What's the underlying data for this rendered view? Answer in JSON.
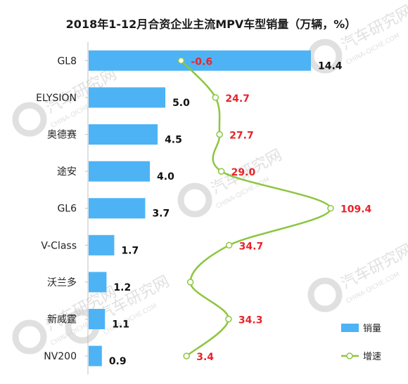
{
  "chart_data": {
    "type": "bar",
    "orientation": "horizontal",
    "title": "2018年1-12月合资企业主流MPV车型销量（万辆，%）",
    "categories": [
      "GL8",
      "ELYSION",
      "奥德赛",
      "途安",
      "GL6",
      "V-Class",
      "沃兰多",
      "新威霆",
      "NV200"
    ],
    "series": [
      {
        "name": "销量",
        "type": "bar",
        "color": "#4db3f5",
        "values": [
          14.4,
          5.0,
          4.5,
          4.0,
          3.7,
          1.7,
          1.2,
          1.1,
          0.9
        ],
        "labels": [
          "14.4",
          "5.0",
          "4.5",
          "4.0",
          "3.7",
          "1.7",
          "1.2",
          "1.1",
          "0.9"
        ]
      },
      {
        "name": "增速",
        "type": "line",
        "color": "#8cc63f",
        "label_color": "#e8242a",
        "values": [
          -0.6,
          24.7,
          27.7,
          29.0,
          109.4,
          34.7,
          null,
          34.3,
          3.4
        ],
        "labels": [
          "-0.6",
          "24.7",
          "27.7",
          "29.0",
          "109.4",
          "34.7",
          "",
          "34.3",
          "3.4"
        ]
      }
    ],
    "xlim_bars": [
      0,
      14.4
    ],
    "xlim_line": [
      -20,
      112
    ],
    "legend": "bottom-right",
    "grid": false
  },
  "watermark": {
    "text_cn": "汽车研究网",
    "text_en": "CHINA-QICHE.COM",
    "color": "#c8c8c8"
  }
}
